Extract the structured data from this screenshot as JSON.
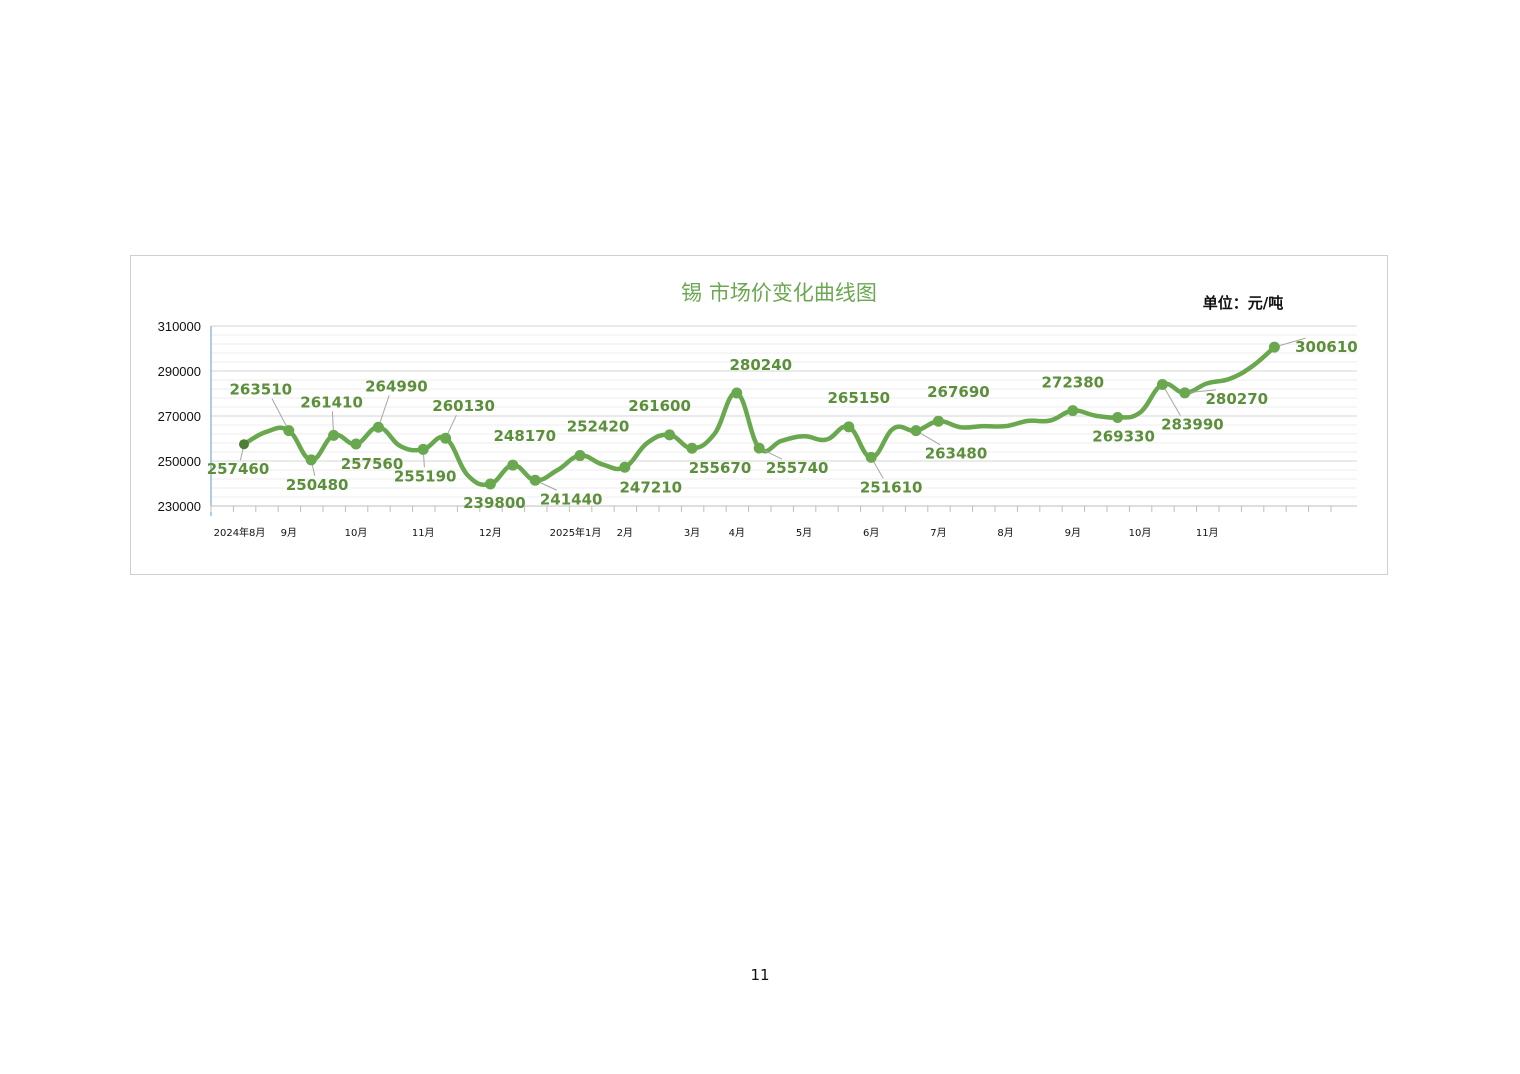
{
  "page": {
    "number": "11"
  },
  "chart_data": {
    "type": "line",
    "title": "锡 市场价变化曲线图",
    "unit_label": "单位：元/吨",
    "ylim": [
      230000,
      310000
    ],
    "yticks": [
      "310000",
      "290000",
      "270000",
      "250000",
      "230000"
    ],
    "xlabel": "",
    "ylabel": "",
    "grid": true,
    "x_tick_labels": [
      {
        "label": "2024年8月",
        "index": 0.8
      },
      {
        "label": "9月",
        "index": 3
      },
      {
        "label": "10月",
        "index": 6
      },
      {
        "label": "11月",
        "index": 9
      },
      {
        "label": "12月",
        "index": 12
      },
      {
        "label": "2025年1月",
        "index": 15.8
      },
      {
        "label": "2月",
        "index": 18
      },
      {
        "label": "3月",
        "index": 21
      },
      {
        "label": "4月",
        "index": 23
      },
      {
        "label": "5月",
        "index": 26
      },
      {
        "label": "6月",
        "index": 29
      },
      {
        "label": "7月",
        "index": 32
      },
      {
        "label": "8月",
        "index": 35
      },
      {
        "label": "9月",
        "index": 38
      },
      {
        "label": "10月",
        "index": 41
      },
      {
        "label": "11月",
        "index": 44
      }
    ],
    "series": [
      {
        "color": "#6aa84f",
        "points": [
          {
            "x": 1,
            "y": 257460,
            "label": "257460"
          },
          {
            "x": 2,
            "y": 263000
          },
          {
            "x": 3,
            "y": 263510,
            "label": "263510"
          },
          {
            "x": 4,
            "y": 250480,
            "label": "250480"
          },
          {
            "x": 5,
            "y": 261410,
            "label": "261410"
          },
          {
            "x": 6,
            "y": 257560,
            "label": "257560"
          },
          {
            "x": 7,
            "y": 264990,
            "label": "264990"
          },
          {
            "x": 8,
            "y": 256500
          },
          {
            "x": 9,
            "y": 255190,
            "label": "255190"
          },
          {
            "x": 10,
            "y": 260130,
            "label": "260130"
          },
          {
            "x": 11,
            "y": 243500
          },
          {
            "x": 12,
            "y": 239800,
            "label": "239800"
          },
          {
            "x": 13,
            "y": 248170,
            "label": "248170"
          },
          {
            "x": 14,
            "y": 241440,
            "label": "241440"
          },
          {
            "x": 15,
            "y": 246000
          },
          {
            "x": 16,
            "y": 252420,
            "label": "252420"
          },
          {
            "x": 17,
            "y": 248500
          },
          {
            "x": 18,
            "y": 247210,
            "label": "247210"
          },
          {
            "x": 19,
            "y": 258000
          },
          {
            "x": 20,
            "y": 261600,
            "label": "261600"
          },
          {
            "x": 21,
            "y": 255670,
            "label": "255670"
          },
          {
            "x": 22,
            "y": 262000
          },
          {
            "x": 23,
            "y": 280240,
            "label": "280240"
          },
          {
            "x": 24,
            "y": 255740,
            "label": "255740"
          },
          {
            "x": 25,
            "y": 259000
          },
          {
            "x": 26,
            "y": 261000
          },
          {
            "x": 27,
            "y": 259500
          },
          {
            "x": 28,
            "y": 265150,
            "label": "265150"
          },
          {
            "x": 29,
            "y": 251610,
            "label": "251610"
          },
          {
            "x": 30,
            "y": 264500
          },
          {
            "x": 31,
            "y": 263480,
            "label": "263480"
          },
          {
            "x": 32,
            "y": 267690,
            "label": "267690"
          },
          {
            "x": 33,
            "y": 265000
          },
          {
            "x": 34,
            "y": 265500
          },
          {
            "x": 35,
            "y": 265500
          },
          {
            "x": 36,
            "y": 267800
          },
          {
            "x": 37,
            "y": 268000
          },
          {
            "x": 38,
            "y": 272380,
            "label": "272380"
          },
          {
            "x": 39,
            "y": 270200
          },
          {
            "x": 40,
            "y": 269330,
            "label": "269330"
          },
          {
            "x": 41,
            "y": 271500
          },
          {
            "x": 42,
            "y": 283990,
            "label": "283990"
          },
          {
            "x": 43,
            "y": 280270,
            "label": "280270"
          },
          {
            "x": 44,
            "y": 284500
          },
          {
            "x": 45,
            "y": 286500
          },
          {
            "x": 46,
            "y": 292000
          },
          {
            "x": 47,
            "y": 300610,
            "label": "300610"
          }
        ]
      }
    ]
  }
}
